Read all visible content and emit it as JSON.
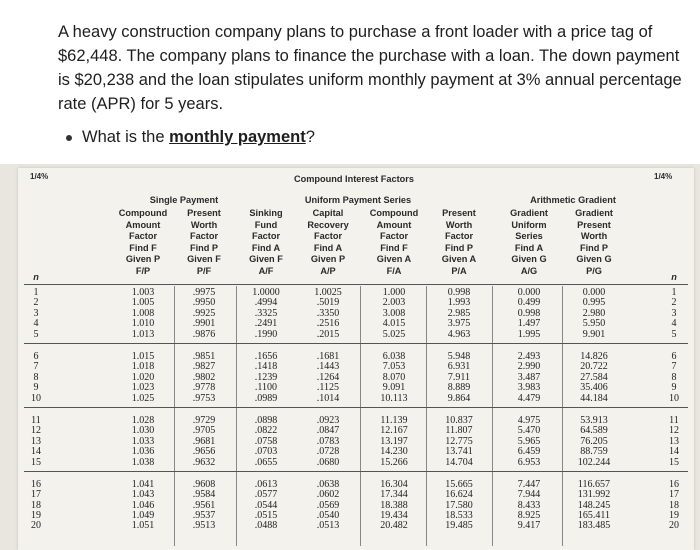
{
  "question": {
    "paragraph": "A heavy construction company plans to purchase a front loader with a price tag of $62,448. The company plans to finance the purchase with a loan. The down payment is $20,238 and the loan stipulates uniform monthly payment at 3% annual percentage rate (APR) for 5 years.",
    "bullet_prefix": "What is the ",
    "bullet_emph": "monthly payment",
    "bullet_suffix": "?"
  },
  "table": {
    "rate_label": "1/4%",
    "title": "Compound Interest Factors",
    "group_single": "Single Payment",
    "group_uniform": "Uniform Payment Series",
    "group_arith": "Arithmetic Gradient",
    "n_label": "n",
    "columns": [
      {
        "lines": [
          "Compound",
          "Amount",
          "Factor",
          "Find F",
          "Given P",
          "F/P"
        ]
      },
      {
        "lines": [
          "Present",
          "Worth",
          "Factor",
          "Find P",
          "Given F",
          "P/F"
        ]
      },
      {
        "lines": [
          "Sinking",
          "Fund",
          "Factor",
          "Find A",
          "Given F",
          "A/F"
        ]
      },
      {
        "lines": [
          "Capital",
          "Recovery",
          "Factor",
          "Find A",
          "Given P",
          "A/P"
        ]
      },
      {
        "lines": [
          "Compound",
          "Amount",
          "Factor",
          "Find F",
          "Given A",
          "F/A"
        ]
      },
      {
        "lines": [
          "Present",
          "Worth",
          "Factor",
          "Find P",
          "Given A",
          "P/A"
        ]
      },
      {
        "lines": [
          "Gradient",
          "Uniform",
          "Series",
          "Find A",
          "Given G",
          "A/G"
        ]
      },
      {
        "lines": [
          "Gradient",
          "Present",
          "Worth",
          "Find P",
          "Given G",
          "P/G"
        ]
      }
    ],
    "groups": [
      [
        {
          "n": "1",
          "v": [
            "1.003",
            ".9975",
            "1.0000",
            "1.0025",
            "1.000",
            "0.998",
            "0.000",
            "0.000"
          ]
        },
        {
          "n": "2",
          "v": [
            "1.005",
            ".9950",
            ".4994",
            ".5019",
            "2.003",
            "1.993",
            "0.499",
            "0.995"
          ]
        },
        {
          "n": "3",
          "v": [
            "1.008",
            ".9925",
            ".3325",
            ".3350",
            "3.008",
            "2.985",
            "0.998",
            "2.980"
          ]
        },
        {
          "n": "4",
          "v": [
            "1.010",
            ".9901",
            ".2491",
            ".2516",
            "4.015",
            "3.975",
            "1.497",
            "5.950"
          ]
        },
        {
          "n": "5",
          "v": [
            "1.013",
            ".9876",
            ".1990",
            ".2015",
            "5.025",
            "4.963",
            "1.995",
            "9.901"
          ]
        }
      ],
      [
        {
          "n": "6",
          "v": [
            "1.015",
            ".9851",
            ".1656",
            ".1681",
            "6.038",
            "5.948",
            "2.493",
            "14.826"
          ]
        },
        {
          "n": "7",
          "v": [
            "1.018",
            ".9827",
            ".1418",
            ".1443",
            "7.053",
            "6.931",
            "2.990",
            "20.722"
          ]
        },
        {
          "n": "8",
          "v": [
            "1.020",
            ".9802",
            ".1239",
            ".1264",
            "8.070",
            "7.911",
            "3.487",
            "27.584"
          ]
        },
        {
          "n": "9",
          "v": [
            "1.023",
            ".9778",
            ".1100",
            ".1125",
            "9.091",
            "8.889",
            "3.983",
            "35.406"
          ]
        },
        {
          "n": "10",
          "v": [
            "1.025",
            ".9753",
            ".0989",
            ".1014",
            "10.113",
            "9.864",
            "4.479",
            "44.184"
          ]
        }
      ],
      [
        {
          "n": "11",
          "v": [
            "1.028",
            ".9729",
            ".0898",
            ".0923",
            "11.139",
            "10.837",
            "4.975",
            "53.913"
          ]
        },
        {
          "n": "12",
          "v": [
            "1.030",
            ".9705",
            ".0822",
            ".0847",
            "12.167",
            "11.807",
            "5.470",
            "64.589"
          ]
        },
        {
          "n": "13",
          "v": [
            "1.033",
            ".9681",
            ".0758",
            ".0783",
            "13.197",
            "12.775",
            "5.965",
            "76.205"
          ]
        },
        {
          "n": "14",
          "v": [
            "1.036",
            ".9656",
            ".0703",
            ".0728",
            "14.230",
            "13.741",
            "6.459",
            "88.759"
          ]
        },
        {
          "n": "15",
          "v": [
            "1.038",
            ".9632",
            ".0655",
            ".0680",
            "15.266",
            "14.704",
            "6.953",
            "102.244"
          ]
        }
      ],
      [
        {
          "n": "16",
          "v": [
            "1.041",
            ".9608",
            ".0613",
            ".0638",
            "16.304",
            "15.665",
            "7.447",
            "116.657"
          ]
        },
        {
          "n": "17",
          "v": [
            "1.043",
            ".9584",
            ".0577",
            ".0602",
            "17.344",
            "16.624",
            "7.944",
            "131.992"
          ]
        },
        {
          "n": "18",
          "v": [
            "1.046",
            ".9561",
            ".0544",
            ".0569",
            "18.388",
            "17.580",
            "8.433",
            "148.245"
          ]
        },
        {
          "n": "19",
          "v": [
            "1.049",
            ".9537",
            ".0515",
            ".0540",
            "19.434",
            "18.533",
            "8.925",
            "165.411"
          ]
        },
        {
          "n": "20",
          "v": [
            "1.051",
            ".9513",
            ".0488",
            ".0513",
            "20.482",
            "19.485",
            "9.417",
            "183.485"
          ]
        }
      ]
    ]
  }
}
